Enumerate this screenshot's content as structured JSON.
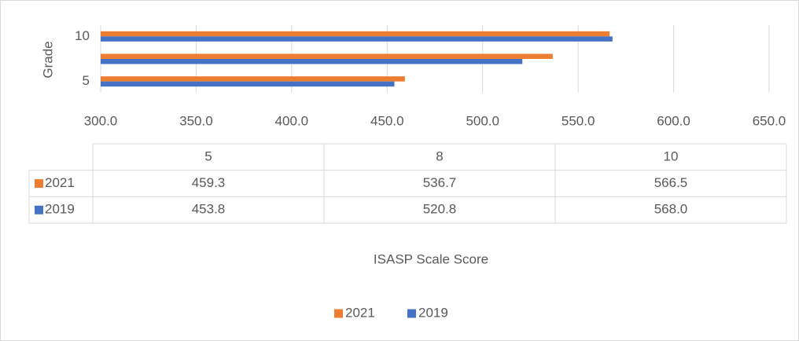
{
  "chart_data": {
    "type": "bar",
    "orientation": "horizontal",
    "categories": [
      "5",
      "8",
      "10"
    ],
    "series": [
      {
        "name": "2021",
        "color": "#ed7d31",
        "values": [
          459.3,
          536.7,
          566.5
        ]
      },
      {
        "name": "2019",
        "color": "#4472c4",
        "values": [
          453.8,
          520.8,
          568.0
        ],
        "value_labels": [
          "453.8",
          "520.8",
          "568.0"
        ]
      }
    ],
    "xlim": [
      300,
      650
    ],
    "xticks": [
      {
        "value": 300,
        "label": "300.0"
      },
      {
        "value": 350,
        "label": "350.0"
      },
      {
        "value": 400,
        "label": "400.0"
      },
      {
        "value": 450,
        "label": "450.0"
      },
      {
        "value": 500,
        "label": "500.0"
      },
      {
        "value": 550,
        "label": "550.0"
      },
      {
        "value": 600,
        "label": "600.0"
      },
      {
        "value": 650,
        "label": "650.0"
      }
    ],
    "x_label": "ISASP Scale Score",
    "y_label": "Grade",
    "grid": true,
    "legend": "bottom",
    "data_table": true
  }
}
